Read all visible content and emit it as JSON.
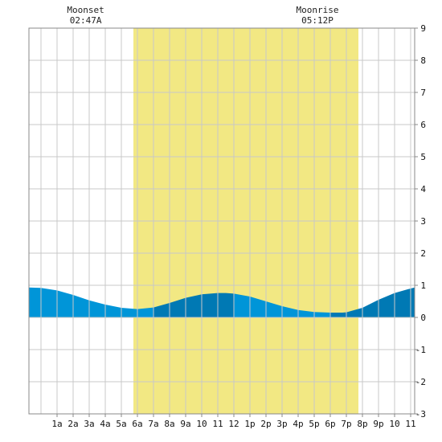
{
  "chart_data": {
    "type": "area",
    "title": "",
    "xlabel": "",
    "ylabel": "",
    "x_tick_labels": [
      "1a",
      "2a",
      "3a",
      "4a",
      "5a",
      "6a",
      "7a",
      "8a",
      "9a",
      "10",
      "11",
      "12",
      "1p",
      "2p",
      "3p",
      "4p",
      "5p",
      "6p",
      "7p",
      "8p",
      "9p",
      "10",
      "11"
    ],
    "x_range_hours": [
      -0.75,
      23.25
    ],
    "ylim": [
      -3,
      9
    ],
    "y_ticks": [
      -3,
      -2,
      -1,
      0,
      1,
      2,
      3,
      4,
      5,
      6,
      7,
      8,
      9
    ],
    "grid": true,
    "daylight": {
      "start_hour": 5.75,
      "end_hour": 19.75,
      "color": "#f2e883"
    },
    "moon_events": [
      {
        "label": "Moonset",
        "time": "02:47A",
        "hour": 2.78
      },
      {
        "label": "Moonrise",
        "time": "05:12P",
        "hour": 17.2
      }
    ],
    "series": [
      {
        "x": [
          -0.75,
          0,
          1,
          2,
          3,
          4,
          5,
          6,
          7,
          8,
          9,
          10,
          11,
          11.5,
          12,
          13,
          14,
          15,
          16,
          17,
          18,
          18.75,
          19,
          20,
          21,
          22,
          23,
          23.25
        ],
        "y": [
          0.93,
          0.92,
          0.84,
          0.7,
          0.53,
          0.4,
          0.3,
          0.26,
          0.31,
          0.45,
          0.61,
          0.72,
          0.76,
          0.76,
          0.74,
          0.65,
          0.5,
          0.35,
          0.23,
          0.17,
          0.15,
          0.15,
          0.16,
          0.3,
          0.55,
          0.76,
          0.9,
          0.93
        ]
      }
    ],
    "colors": {
      "water": "#0095d8",
      "water_dark": "#0079b4",
      "grid": "#c8c8c8",
      "frame": "#888888"
    }
  }
}
